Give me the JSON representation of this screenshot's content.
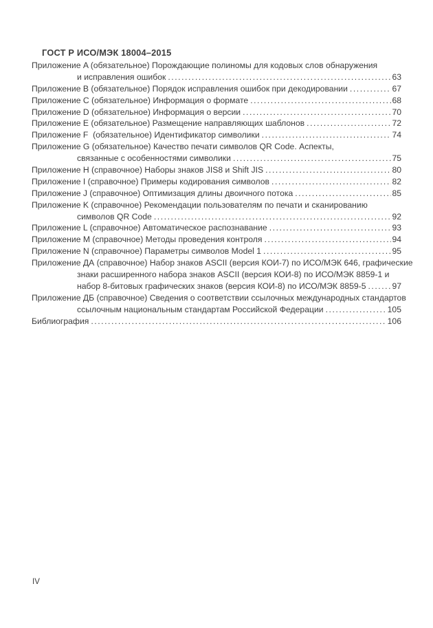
{
  "document": {
    "header_title": "ГОСТ Р ИСО/МЭК 18004–2015",
    "footer_page_number": "IV"
  },
  "toc": {
    "entries": [
      {
        "lines": [
          "Приложение A (обязательное) Порождающие полиномы для кодовых слов обнаружения",
          "и исправления ошибок"
        ],
        "page": "63"
      },
      {
        "lines": [
          "Приложение B (обязательное) Порядок исправления ошибок при декодировании"
        ],
        "page": "67"
      },
      {
        "lines": [
          "Приложение C (обязательное) Информация о формате"
        ],
        "page": "68"
      },
      {
        "lines": [
          "Приложение D (обязательное) Информация о версии"
        ],
        "page": "70"
      },
      {
        "lines": [
          "Приложение E (обязательное) Размещение направляющих шаблонов"
        ],
        "page": "72"
      },
      {
        "lines": [
          "Приложение F  (обязательное) Идентификатор символики"
        ],
        "page": "74"
      },
      {
        "lines": [
          "Приложение G (обязательное) Качество печати символов QR Code. Аспекты,",
          "связанные с особенностями символики"
        ],
        "page": "75"
      },
      {
        "lines": [
          "Приложение H (справочное) Наборы знаков JIS8 и Shift JIS"
        ],
        "page": "80"
      },
      {
        "lines": [
          "Приложение I (справочное) Примеры кодирования символов"
        ],
        "page": "82"
      },
      {
        "lines": [
          "Приложение J (справочное) Оптимизация длины двоичного потока"
        ],
        "page": "85"
      },
      {
        "lines": [
          "Приложение K (справочное) Рекомендации пользователям по печати и сканированию",
          "символов QR Code"
        ],
        "page": "92"
      },
      {
        "lines": [
          "Приложение L (справочное) Автоматическое распознавание"
        ],
        "page": "93"
      },
      {
        "lines": [
          "Приложение M (справочное) Методы проведения контроля"
        ],
        "page": "94"
      },
      {
        "lines": [
          "Приложение N (справочное) Параметры символов Model 1"
        ],
        "page": "95"
      },
      {
        "lines": [
          "Приложение ДА (справочное) Набор знаков ASCII (версия КОИ-7) по ИСО/МЭК 646, графические",
          "знаки расширенного набора знаков ASCII (версия КОИ-8) по ИСО/МЭК 8859-1 и",
          "набор 8-битовых графических знаков (версия КОИ-8) по ИСО/МЭК 8859-5"
        ],
        "page": "97"
      },
      {
        "lines": [
          "Приложение ДБ (справочное) Сведения о соответствии ссылочных международных стандартов",
          "ссылочным национальным стандартам Российской Федерации"
        ],
        "page": "105"
      },
      {
        "lines": [
          "Библиография"
        ],
        "page": "106"
      }
    ]
  },
  "colors": {
    "text": "#3d3d3d",
    "page_background": "#ffffff"
  }
}
